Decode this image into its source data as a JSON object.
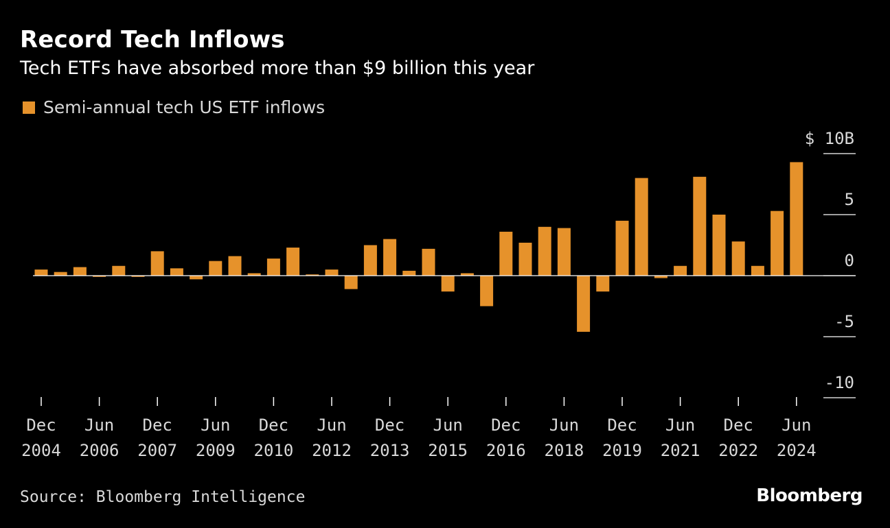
{
  "header": {
    "title": "Record Tech Inflows",
    "subtitle": "Tech ETFs have absorbed more than $9 billion this year"
  },
  "legend": {
    "label": "Semi-annual tech US ETF inflows"
  },
  "footer": {
    "source": "Source: Bloomberg Intelligence",
    "brand": "Bloomberg"
  },
  "colors": {
    "bar": "#E6922B",
    "background": "#000000",
    "axis": "#ffffff",
    "text": "#d9d9d9"
  },
  "chart_data": {
    "type": "bar",
    "title": "Record Tech Inflows",
    "subtitle": "Tech ETFs have absorbed more than $9 billion this year",
    "ylim": [
      -10,
      10
    ],
    "y_ticks": [
      {
        "value": 10,
        "label": "$ 10B"
      },
      {
        "value": 5,
        "label": "5"
      },
      {
        "value": 0,
        "label": "0"
      },
      {
        "value": -5,
        "label": "-5"
      },
      {
        "value": -10,
        "label": "-10"
      }
    ],
    "x_tick_labels": [
      {
        "month": "Dec",
        "year": "2004",
        "index": 0
      },
      {
        "month": "Jun",
        "year": "2006",
        "index": 3
      },
      {
        "month": "Dec",
        "year": "2007",
        "index": 6
      },
      {
        "month": "Jun",
        "year": "2009",
        "index": 9
      },
      {
        "month": "Dec",
        "year": "2010",
        "index": 12
      },
      {
        "month": "Jun",
        "year": "2012",
        "index": 15
      },
      {
        "month": "Dec",
        "year": "2013",
        "index": 18
      },
      {
        "month": "Jun",
        "year": "2015",
        "index": 21
      },
      {
        "month": "Dec",
        "year": "2016",
        "index": 24
      },
      {
        "month": "Jun",
        "year": "2018",
        "index": 27
      },
      {
        "month": "Dec",
        "year": "2019",
        "index": 30
      },
      {
        "month": "Jun",
        "year": "2021",
        "index": 33
      },
      {
        "month": "Dec",
        "year": "2022",
        "index": 36
      },
      {
        "month": "Jun",
        "year": "2024",
        "index": 39
      }
    ],
    "series": [
      {
        "name": "Semi-annual tech US ETF inflows",
        "values": [
          0.5,
          0.3,
          0.7,
          -0.1,
          0.8,
          -0.1,
          2.0,
          0.6,
          -0.3,
          1.2,
          1.6,
          0.2,
          1.4,
          2.3,
          0.1,
          0.5,
          -1.1,
          2.5,
          3.0,
          0.4,
          2.2,
          -1.3,
          0.2,
          -2.5,
          3.6,
          2.7,
          4.0,
          3.9,
          -4.6,
          -1.3,
          4.5,
          8.0,
          -0.2,
          0.8,
          8.1,
          5.0,
          2.8,
          0.8,
          5.3,
          9.3
        ]
      }
    ]
  }
}
